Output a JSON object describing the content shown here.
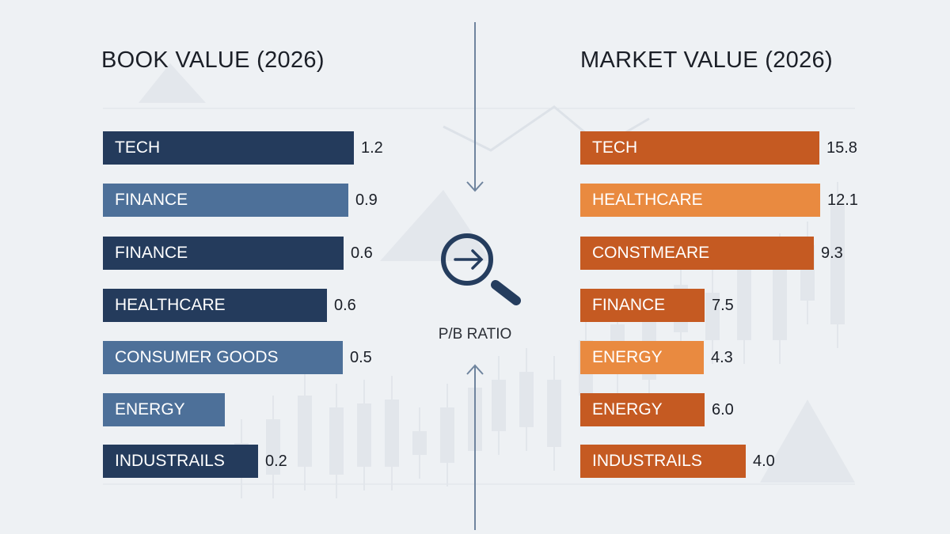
{
  "colors": {
    "book_dark": "#243b5c",
    "book_light": "#4d7099",
    "market_dark": "#c55a22",
    "market_light": "#e98a40",
    "accent_icon": "#253d5e"
  },
  "center": {
    "label": "P/B RATIO",
    "icon": "magnifier-arrow-icon"
  },
  "chart_data": [
    {
      "type": "bar",
      "orientation": "horizontal",
      "title": "BOOK VALUE (2026)",
      "categories": [
        "TECH",
        "FINANCE",
        "FINANCE",
        "HEALTHCARE",
        "CONSUMER GOODS",
        "ENERGY",
        "INDUSTRAILS"
      ],
      "values": [
        "1.2",
        "0.9",
        "0.6",
        "0.6",
        "0.5",
        null,
        "0.2"
      ],
      "shades": [
        "dark",
        "light",
        "dark",
        "dark",
        "light",
        "light",
        "dark"
      ]
    },
    {
      "type": "bar",
      "orientation": "horizontal",
      "title": "MARKET VALUE (2026)",
      "categories": [
        "TECH",
        "HEALTHCARE",
        "CONSTMEARE",
        "FINANCE",
        "ENERGY",
        "ENERGY",
        "INDUSTRAILS"
      ],
      "values": [
        "15.8",
        "12.1",
        "9.3",
        "7.5",
        "4.3",
        "6.0",
        "4.0"
      ],
      "shades": [
        "dark",
        "light",
        "dark",
        "dark",
        "light",
        "dark",
        "dark"
      ]
    }
  ]
}
